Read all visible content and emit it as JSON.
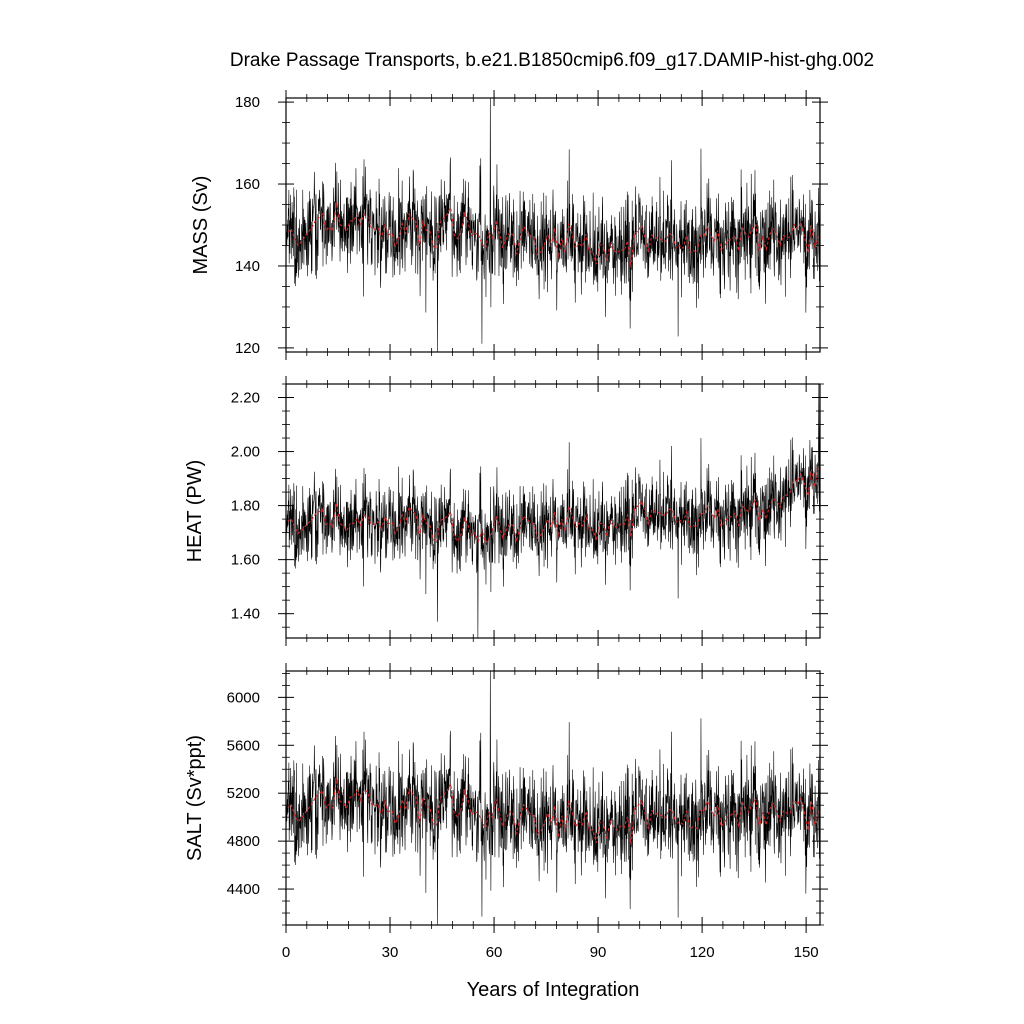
{
  "figure": {
    "title": "Drake Passage Transports, b.e21.B1850cmip6.f09_g17.DAMIP-hist-ghg.002",
    "xlabel": "Years of Integration"
  },
  "chart_data": [
    {
      "type": "line",
      "panel": "mass",
      "ylabel": "MASS (Sv)",
      "xlim": [
        0,
        154
      ],
      "ylim": [
        119,
        181
      ],
      "x_ticks": [
        0,
        30,
        60,
        90,
        120,
        150
      ],
      "y_ticks": [
        120,
        140,
        160,
        180
      ],
      "y_tick_labels": [
        "120",
        "140",
        "160",
        "180"
      ],
      "sampling": "monthly, 1848 points over 154 years",
      "series": [
        {
          "role": "monthly",
          "color": "#000000",
          "mean_profile": {
            "x": [
              0,
              10,
              20,
              30,
              40,
              50,
              60,
              70,
              80,
              90,
              100,
              110,
              120,
              130,
              140,
              150,
              154
            ],
            "y": [
              146.5,
              149,
              151,
              148,
              147.5,
              150,
              148,
              147,
              146,
              145,
              144,
              145,
              145,
              146.5,
              147.5,
              148.5,
              147
            ]
          },
          "noise_sd": 6.5,
          "extremes": [
            {
              "x": 43.7,
              "y": 119
            },
            {
              "x": 56.5,
              "y": 121
            },
            {
              "x": 58.9,
              "y": 181
            }
          ]
        },
        {
          "role": "annual mean",
          "color": "#d62728",
          "mean_profile": {
            "x": [
              0,
              10,
              20,
              30,
              40,
              50,
              60,
              70,
              80,
              90,
              100,
              110,
              120,
              130,
              140,
              150,
              154
            ],
            "y": [
              146.5,
              149,
              151,
              148,
              147.5,
              150,
              148,
              147,
              146,
              145,
              144,
              145,
              145,
              146.5,
              147.5,
              148.5,
              147
            ]
          }
        }
      ]
    },
    {
      "type": "line",
      "panel": "heat",
      "ylabel": "HEAT (PW)",
      "xlim": [
        0,
        154
      ],
      "ylim": [
        1.31,
        2.25
      ],
      "x_ticks": [
        0,
        30,
        60,
        90,
        120,
        150
      ],
      "y_ticks": [
        1.4,
        1.6,
        1.8,
        2.0,
        2.2
      ],
      "y_tick_labels": [
        "1.40",
        "1.60",
        "1.80",
        "2.00",
        "2.20"
      ],
      "sampling": "monthly, 1848 points over 154 years",
      "series": [
        {
          "role": "monthly",
          "color": "#000000",
          "mean_profile": {
            "x": [
              0,
              10,
              20,
              30,
              40,
              50,
              60,
              70,
              80,
              90,
              100,
              110,
              120,
              130,
              140,
              145,
              150,
              154
            ],
            "y": [
              1.72,
              1.74,
              1.73,
              1.74,
              1.72,
              1.71,
              1.72,
              1.73,
              1.74,
              1.73,
              1.74,
              1.75,
              1.74,
              1.76,
              1.8,
              1.86,
              1.9,
              1.92
            ]
          },
          "noise_sd": 0.085,
          "extremes": [
            {
              "x": 55.3,
              "y": 1.31
            },
            {
              "x": 43.7,
              "y": 1.37
            },
            {
              "x": 153.7,
              "y": 2.25
            }
          ]
        },
        {
          "role": "annual mean",
          "color": "#d62728",
          "mean_profile": {
            "x": [
              0,
              10,
              20,
              30,
              40,
              50,
              60,
              70,
              80,
              90,
              100,
              110,
              120,
              130,
              140,
              145,
              150,
              154
            ],
            "y": [
              1.72,
              1.74,
              1.73,
              1.74,
              1.72,
              1.71,
              1.72,
              1.73,
              1.74,
              1.73,
              1.74,
              1.75,
              1.74,
              1.76,
              1.8,
              1.86,
              1.9,
              1.92
            ]
          }
        }
      ]
    },
    {
      "type": "line",
      "panel": "salt",
      "ylabel": "SALT (Sv*ppt)",
      "xlim": [
        0,
        154
      ],
      "ylim": [
        4100,
        6220
      ],
      "x_ticks": [
        0,
        30,
        60,
        90,
        120,
        150
      ],
      "x_tick_labels": [
        "0",
        "30",
        "60",
        "90",
        "120",
        "150"
      ],
      "y_ticks": [
        4400,
        4800,
        5200,
        5600,
        6000
      ],
      "y_tick_labels": [
        "4400",
        "4800",
        "5200",
        "5600",
        "6000"
      ],
      "sampling": "monthly, 1848 points over 154 years",
      "series": [
        {
          "role": "monthly",
          "color": "#000000",
          "mean_profile": {
            "x": [
              0,
              10,
              20,
              30,
              40,
              50,
              60,
              70,
              80,
              90,
              100,
              110,
              120,
              130,
              140,
              150,
              154
            ],
            "y": [
              5020,
              5090,
              5170,
              5060,
              5050,
              5120,
              5040,
              5010,
              4980,
              4950,
              4930,
              4960,
              4970,
              5020,
              5060,
              5080,
              5040
            ]
          },
          "noise_sd": 235,
          "extremes": [
            {
              "x": 43.7,
              "y": 4100
            },
            {
              "x": 56.5,
              "y": 4170
            },
            {
              "x": 58.9,
              "y": 6220
            }
          ]
        },
        {
          "role": "annual mean",
          "color": "#d62728",
          "mean_profile": {
            "x": [
              0,
              10,
              20,
              30,
              40,
              50,
              60,
              70,
              80,
              90,
              100,
              110,
              120,
              130,
              140,
              150,
              154
            ],
            "y": [
              5020,
              5090,
              5170,
              5060,
              5050,
              5120,
              5040,
              5010,
              4980,
              4950,
              4930,
              4960,
              4970,
              5020,
              5060,
              5080,
              5040
            ]
          }
        }
      ]
    }
  ]
}
